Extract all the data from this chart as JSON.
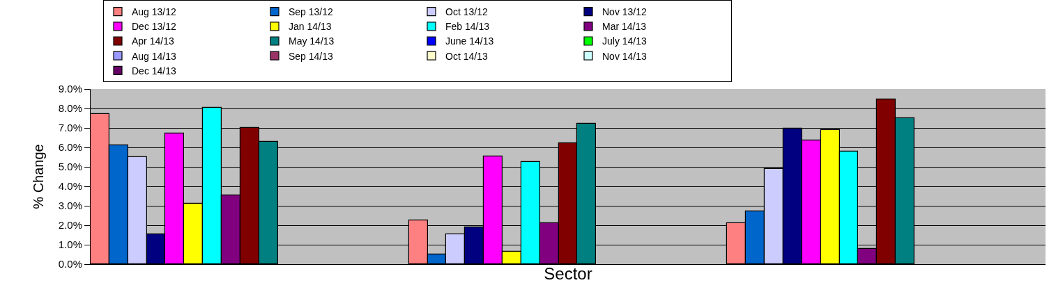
{
  "chart_data": {
    "type": "bar",
    "xlabel": "Sector",
    "ylabel": "% Change",
    "categories": [
      null,
      null,
      null
    ],
    "ylim": [
      0,
      9
    ],
    "yticks": [
      {
        "value": 0,
        "label": "0.0%"
      },
      {
        "value": 1,
        "label": "1.0%"
      },
      {
        "value": 2,
        "label": "2.0%"
      },
      {
        "value": 3,
        "label": "3.0%"
      },
      {
        "value": 4,
        "label": "4.0%"
      },
      {
        "value": 5,
        "label": "5.0%"
      },
      {
        "value": 6,
        "label": "6.0%"
      },
      {
        "value": 7,
        "label": "7.0%"
      },
      {
        "value": 8,
        "label": "8.0%"
      },
      {
        "value": 9,
        "label": "9.0%"
      }
    ],
    "grid": "y",
    "legend": "top",
    "series": [
      {
        "name": "Aug 13/12",
        "color": "#ff8080",
        "values": [
          7.7,
          2.25,
          2.1
        ]
      },
      {
        "name": "Sep 13/12",
        "color": "#0066cc",
        "values": [
          6.1,
          0.5,
          2.7
        ]
      },
      {
        "name": "Oct 13/12",
        "color": "#ccccff",
        "values": [
          5.5,
          1.55,
          4.9
        ]
      },
      {
        "name": "Nov 13/12",
        "color": "#000080",
        "values": [
          1.55,
          1.9,
          6.95
        ]
      },
      {
        "name": "Dec 13/12",
        "color": "#ff00ff",
        "values": [
          6.7,
          5.55,
          6.35
        ]
      },
      {
        "name": "Jan 14/13",
        "color": "#ffff00",
        "values": [
          3.1,
          0.65,
          6.9
        ]
      },
      {
        "name": "Feb 14/13",
        "color": "#00ffff",
        "values": [
          8.05,
          5.25,
          5.8
        ]
      },
      {
        "name": "Mar 14/13",
        "color": "#800080",
        "values": [
          3.55,
          2.1,
          0.8
        ]
      },
      {
        "name": "Apr 14/13",
        "color": "#800000",
        "values": [
          7.0,
          6.2,
          8.45
        ]
      },
      {
        "name": "May 14/13",
        "color": "#008080",
        "values": [
          6.3,
          7.2,
          7.5
        ]
      },
      {
        "name": "June 14/13",
        "color": "#0000ff",
        "values": [
          null,
          null,
          null
        ]
      },
      {
        "name": "July 14/13",
        "color": "#00ff00",
        "values": [
          null,
          null,
          null
        ]
      },
      {
        "name": "Aug 14/13",
        "color": "#9999ff",
        "values": [
          null,
          null,
          null
        ]
      },
      {
        "name": "Sep 14/13",
        "color": "#993366",
        "values": [
          null,
          null,
          null
        ]
      },
      {
        "name": "Oct 14/13",
        "color": "#ffffcc",
        "values": [
          null,
          null,
          null
        ]
      },
      {
        "name": "Nov 14/13",
        "color": "#ccffff",
        "values": [
          null,
          null,
          null
        ]
      },
      {
        "name": "Dec 14/13",
        "color": "#660066",
        "values": [
          null,
          null,
          null
        ]
      }
    ]
  }
}
